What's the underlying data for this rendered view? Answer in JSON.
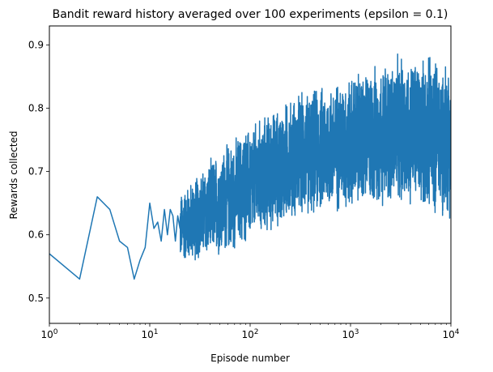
{
  "chart_data": {
    "type": "line",
    "title": "Bandit reward history averaged over 100 experiments (epsilon = 0.1)",
    "xlabel": "Episode number",
    "ylabel": "Rewards collected",
    "xscale": "log",
    "xlim": [
      1,
      10000
    ],
    "ylim": [
      0.46,
      0.93
    ],
    "x_ticks": [
      {
        "value": 1,
        "base": "10",
        "exp": "0"
      },
      {
        "value": 10,
        "base": "10",
        "exp": "1"
      },
      {
        "value": 100,
        "base": "10",
        "exp": "2"
      },
      {
        "value": 1000,
        "base": "10",
        "exp": "3"
      },
      {
        "value": 10000,
        "base": "10",
        "exp": "4"
      }
    ],
    "y_ticks": [
      {
        "value": 0.5,
        "label": "0.5"
      },
      {
        "value": 0.6,
        "label": "0.6"
      },
      {
        "value": 0.7,
        "label": "0.7"
      },
      {
        "value": 0.8,
        "label": "0.8"
      },
      {
        "value": 0.9,
        "label": "0.9"
      }
    ],
    "grid": false,
    "line_color": "#1f77b4",
    "series": [
      {
        "x": [
          1,
          2,
          3,
          4,
          5,
          6,
          7,
          8,
          9,
          10,
          11,
          12,
          13,
          14,
          15,
          16,
          17,
          18,
          19,
          20
        ],
        "values": [
          0.57,
          0.53,
          0.66,
          0.64,
          0.59,
          0.58,
          0.53,
          0.56,
          0.58,
          0.65,
          0.61,
          0.62,
          0.59,
          0.64,
          0.6,
          0.64,
          0.63,
          0.59,
          0.63,
          0.61
        ]
      }
    ],
    "noisy_band": {
      "x_start": 20,
      "x_end": 10000,
      "envelope": [
        {
          "x": 20,
          "low": 0.55,
          "high": 0.67
        },
        {
          "x": 50,
          "low": 0.56,
          "high": 0.74
        },
        {
          "x": 100,
          "low": 0.58,
          "high": 0.78
        },
        {
          "x": 300,
          "low": 0.62,
          "high": 0.83
        },
        {
          "x": 1000,
          "low": 0.63,
          "high": 0.86
        },
        {
          "x": 3000,
          "low": 0.64,
          "high": 0.89
        },
        {
          "x": 10000,
          "low": 0.62,
          "high": 0.89
        }
      ]
    }
  }
}
